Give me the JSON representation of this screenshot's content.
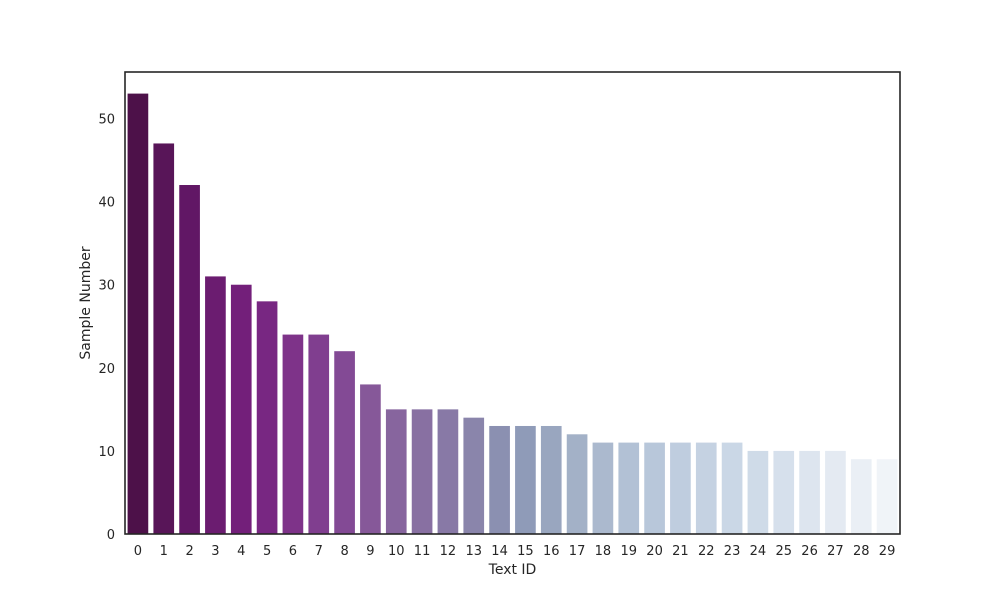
{
  "chart_data": {
    "type": "bar",
    "title": "",
    "xlabel": "Text ID",
    "ylabel": "Sample Number",
    "categories": [
      "0",
      "1",
      "2",
      "3",
      "4",
      "5",
      "6",
      "7",
      "8",
      "9",
      "10",
      "11",
      "12",
      "13",
      "14",
      "15",
      "16",
      "17",
      "18",
      "19",
      "20",
      "21",
      "22",
      "23",
      "24",
      "25",
      "26",
      "27",
      "28",
      "29"
    ],
    "values": [
      53,
      47,
      42,
      31,
      30,
      28,
      24,
      24,
      22,
      18,
      15,
      15,
      15,
      14,
      13,
      13,
      13,
      12,
      11,
      11,
      11,
      11,
      11,
      11,
      10,
      10,
      10,
      10,
      9,
      9
    ],
    "ylim": [
      0,
      55.6
    ],
    "yticks": [
      "0",
      "10",
      "20",
      "30",
      "40",
      "50"
    ],
    "grid": false,
    "legend": "none",
    "colors": [
      "#4d1149",
      "#581558",
      "#611765",
      "#6b1c70",
      "#731f7a",
      "#782782",
      "#7e3389",
      "#803e8f",
      "#834a95",
      "#865899",
      "#87659e",
      "#8870a2",
      "#8879a6",
      "#8a85ab",
      "#8b90b1",
      "#8f9bb8",
      "#99a6bf",
      "#a3b1c7",
      "#abb9ce",
      "#b2c1d5",
      "#b8c7da",
      "#bfcddf",
      "#c5d2e2",
      "#cad7e6",
      "#cfdbe8",
      "#d6e0ec",
      "#dde5ef",
      "#e4eaf2",
      "#eaeff5",
      "#f0f4f8"
    ]
  }
}
